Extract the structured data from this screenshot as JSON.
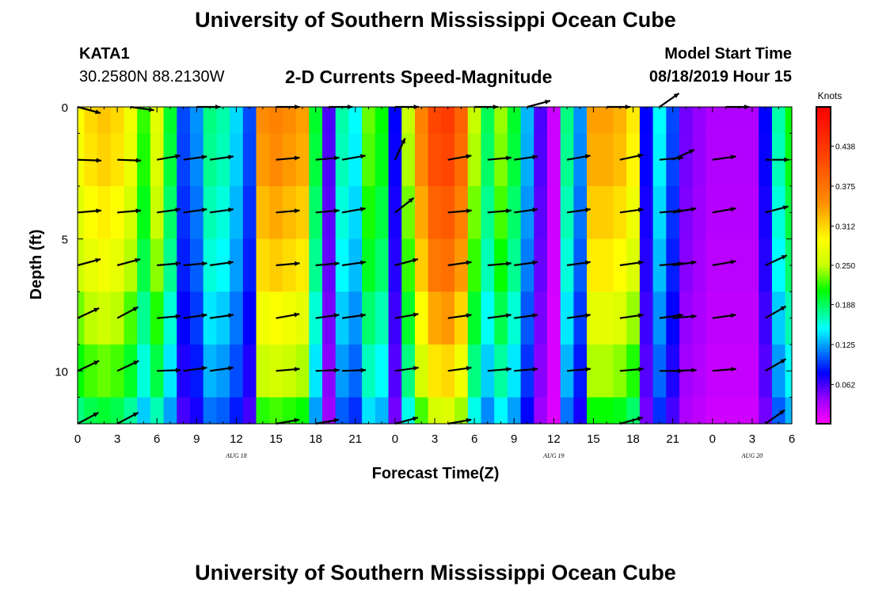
{
  "header": {
    "title": "University of Southern Mississippi Ocean Cube",
    "station_id": "KATA1",
    "coords": "30.2580N 88.2130W",
    "subtitle": "2-D Currents Speed-Magnitude",
    "model_start_label": "Model Start Time",
    "model_start_value": "08/18/2019 Hour 15"
  },
  "footer": {
    "title": "University of Southern Mississippi Ocean Cube"
  },
  "chart_data": {
    "type": "heatmap",
    "title": "2-D Currents Speed-Magnitude",
    "xlabel": "Forecast Time(Z)",
    "ylabel": "Depth (ft)",
    "x_ticks": [
      "0",
      "3",
      "6",
      "9",
      "12",
      "15",
      "18",
      "21",
      "0",
      "3",
      "6",
      "9",
      "12",
      "15",
      "18",
      "21",
      "0",
      "3",
      "6"
    ],
    "x_tick_hours": [
      0,
      3,
      6,
      9,
      12,
      15,
      18,
      21,
      24,
      27,
      30,
      33,
      36,
      39,
      42,
      45,
      48,
      51,
      54
    ],
    "date_labels": [
      {
        "text": "AUG 18",
        "hour": 12
      },
      {
        "text": "AUG 19",
        "hour": 36
      },
      {
        "text": "AUG 20",
        "hour": 51
      }
    ],
    "y_ticks": [
      "0",
      "5",
      "10"
    ],
    "y_tick_values": [
      0,
      5,
      10
    ],
    "xlim": [
      0,
      54
    ],
    "ylim": [
      0,
      12
    ],
    "depth_levels": [
      0,
      2,
      4,
      6,
      8,
      10,
      12
    ],
    "hours": [
      0,
      1,
      2,
      3,
      4,
      5,
      6,
      7,
      8,
      9,
      10,
      11,
      12,
      13,
      14,
      15,
      16,
      17,
      18,
      19,
      20,
      21,
      22,
      23,
      24,
      25,
      26,
      27,
      28,
      29,
      30,
      31,
      32,
      33,
      34,
      35,
      36,
      37,
      38,
      39,
      40,
      41,
      42,
      43,
      44,
      45,
      46,
      47,
      48,
      49,
      50,
      51,
      52,
      53,
      54
    ],
    "surface_speed": [
      0.29,
      0.31,
      0.32,
      0.31,
      0.28,
      0.22,
      0.27,
      0.2,
      0.1,
      0.12,
      0.18,
      0.17,
      0.14,
      0.1,
      0.35,
      0.36,
      0.35,
      0.34,
      0.2,
      0.06,
      0.17,
      0.15,
      0.23,
      0.21,
      0.08,
      0.25,
      0.36,
      0.42,
      0.43,
      0.39,
      0.25,
      0.19,
      0.24,
      0.2,
      0.13,
      0.06,
      0.02,
      0.18,
      0.12,
      0.34,
      0.34,
      0.33,
      0.3,
      0.08,
      0.15,
      0.1,
      0.05,
      0.04,
      0.03,
      0.03,
      0.03,
      0.03,
      0.08,
      0.17,
      0.21
    ],
    "depth_factor": [
      1.0,
      0.98,
      0.93,
      0.88,
      0.8,
      0.72,
      0.62
    ],
    "colorbar": {
      "label": "Knots",
      "ticks": [
        "0.438",
        "0.375",
        "0.312",
        "0.250",
        "0.188",
        "0.125",
        "0.062"
      ],
      "tick_values": [
        0.438,
        0.375,
        0.312,
        0.25,
        0.188,
        0.125,
        0.062
      ],
      "min": 0,
      "max": 0.5
    },
    "arrows": [
      {
        "hour": 0,
        "depth": 0,
        "dir": -15
      },
      {
        "hour": 4,
        "depth": 0,
        "dir": -8
      },
      {
        "hour": 9,
        "depth": 0,
        "dir": 0
      },
      {
        "hour": 15,
        "depth": 0,
        "dir": 0
      },
      {
        "hour": 19,
        "depth": 0,
        "dir": 0
      },
      {
        "hour": 24,
        "depth": 0,
        "dir": 0
      },
      {
        "hour": 30,
        "depth": 0,
        "dir": 0
      },
      {
        "hour": 34,
        "depth": 0,
        "dir": 15
      },
      {
        "hour": 40,
        "depth": 0,
        "dir": 0
      },
      {
        "hour": 44,
        "depth": 0,
        "dir": 35
      },
      {
        "hour": 49,
        "depth": 0,
        "dir": 0
      },
      {
        "hour": 0,
        "depth": 2,
        "dir": -2
      },
      {
        "hour": 3,
        "depth": 2,
        "dir": -2
      },
      {
        "hour": 6,
        "depth": 2,
        "dir": 10
      },
      {
        "hour": 8,
        "depth": 2,
        "dir": 8
      },
      {
        "hour": 10,
        "depth": 2,
        "dir": 8
      },
      {
        "hour": 15,
        "depth": 2,
        "dir": 5
      },
      {
        "hour": 18,
        "depth": 2,
        "dir": 5
      },
      {
        "hour": 20,
        "depth": 2,
        "dir": 10
      },
      {
        "hour": 24,
        "depth": 2,
        "dir": 65
      },
      {
        "hour": 28,
        "depth": 2,
        "dir": 10
      },
      {
        "hour": 31,
        "depth": 2,
        "dir": 5
      },
      {
        "hour": 33,
        "depth": 2,
        "dir": 8
      },
      {
        "hour": 37,
        "depth": 2,
        "dir": 10
      },
      {
        "hour": 41,
        "depth": 2,
        "dir": 12
      },
      {
        "hour": 44,
        "depth": 2,
        "dir": 5
      },
      {
        "hour": 45,
        "depth": 2,
        "dir": 25
      },
      {
        "hour": 48,
        "depth": 2,
        "dir": 8
      },
      {
        "hour": 52,
        "depth": 2,
        "dir": 0
      },
      {
        "hour": 0,
        "depth": 4,
        "dir": 5
      },
      {
        "hour": 3,
        "depth": 4,
        "dir": 5
      },
      {
        "hour": 6,
        "depth": 4,
        "dir": 8
      },
      {
        "hour": 8,
        "depth": 4,
        "dir": 8
      },
      {
        "hour": 10,
        "depth": 4,
        "dir": 8
      },
      {
        "hour": 15,
        "depth": 4,
        "dir": 5
      },
      {
        "hour": 18,
        "depth": 4,
        "dir": 5
      },
      {
        "hour": 20,
        "depth": 4,
        "dir": 10
      },
      {
        "hour": 24,
        "depth": 4,
        "dir": 38
      },
      {
        "hour": 28,
        "depth": 4,
        "dir": 5
      },
      {
        "hour": 31,
        "depth": 4,
        "dir": 5
      },
      {
        "hour": 33,
        "depth": 4,
        "dir": 8
      },
      {
        "hour": 37,
        "depth": 4,
        "dir": 8
      },
      {
        "hour": 41,
        "depth": 4,
        "dir": 8
      },
      {
        "hour": 44,
        "depth": 4,
        "dir": 5
      },
      {
        "hour": 45,
        "depth": 4,
        "dir": 10
      },
      {
        "hour": 48,
        "depth": 4,
        "dir": 10
      },
      {
        "hour": 52,
        "depth": 4,
        "dir": 15
      },
      {
        "hour": 0,
        "depth": 6,
        "dir": 15
      },
      {
        "hour": 3,
        "depth": 6,
        "dir": 15
      },
      {
        "hour": 6,
        "depth": 6,
        "dir": 5
      },
      {
        "hour": 8,
        "depth": 6,
        "dir": 5
      },
      {
        "hour": 10,
        "depth": 6,
        "dir": 8
      },
      {
        "hour": 15,
        "depth": 6,
        "dir": 5
      },
      {
        "hour": 18,
        "depth": 6,
        "dir": 5
      },
      {
        "hour": 20,
        "depth": 6,
        "dir": 8
      },
      {
        "hour": 24,
        "depth": 6,
        "dir": 15
      },
      {
        "hour": 28,
        "depth": 6,
        "dir": 8
      },
      {
        "hour": 31,
        "depth": 6,
        "dir": 5
      },
      {
        "hour": 33,
        "depth": 6,
        "dir": 8
      },
      {
        "hour": 37,
        "depth": 6,
        "dir": 8
      },
      {
        "hour": 41,
        "depth": 6,
        "dir": 8
      },
      {
        "hour": 44,
        "depth": 6,
        "dir": 5
      },
      {
        "hour": 45,
        "depth": 6,
        "dir": 8
      },
      {
        "hour": 48,
        "depth": 6,
        "dir": 10
      },
      {
        "hour": 52,
        "depth": 6,
        "dir": 25
      },
      {
        "hour": 0,
        "depth": 8,
        "dir": 25
      },
      {
        "hour": 3,
        "depth": 8,
        "dir": 28
      },
      {
        "hour": 6,
        "depth": 8,
        "dir": 5
      },
      {
        "hour": 8,
        "depth": 8,
        "dir": 8
      },
      {
        "hour": 10,
        "depth": 8,
        "dir": 8
      },
      {
        "hour": 15,
        "depth": 8,
        "dir": 10
      },
      {
        "hour": 18,
        "depth": 8,
        "dir": 8
      },
      {
        "hour": 20,
        "depth": 8,
        "dir": 8
      },
      {
        "hour": 24,
        "depth": 8,
        "dir": 10
      },
      {
        "hour": 28,
        "depth": 8,
        "dir": 8
      },
      {
        "hour": 31,
        "depth": 8,
        "dir": 8
      },
      {
        "hour": 33,
        "depth": 8,
        "dir": 8
      },
      {
        "hour": 37,
        "depth": 8,
        "dir": 8
      },
      {
        "hour": 41,
        "depth": 8,
        "dir": 8
      },
      {
        "hour": 44,
        "depth": 8,
        "dir": 8
      },
      {
        "hour": 45,
        "depth": 8,
        "dir": 5
      },
      {
        "hour": 48,
        "depth": 8,
        "dir": 8
      },
      {
        "hour": 52,
        "depth": 8,
        "dir": 30
      },
      {
        "hour": 0,
        "depth": 10,
        "dir": 25
      },
      {
        "hour": 3,
        "depth": 10,
        "dir": 25
      },
      {
        "hour": 6,
        "depth": 10,
        "dir": 2
      },
      {
        "hour": 8,
        "depth": 10,
        "dir": 8
      },
      {
        "hour": 10,
        "depth": 10,
        "dir": 8
      },
      {
        "hour": 15,
        "depth": 10,
        "dir": 5
      },
      {
        "hour": 18,
        "depth": 10,
        "dir": 2
      },
      {
        "hour": 20,
        "depth": 10,
        "dir": 2
      },
      {
        "hour": 24,
        "depth": 10,
        "dir": 8
      },
      {
        "hour": 28,
        "depth": 10,
        "dir": 8
      },
      {
        "hour": 31,
        "depth": 10,
        "dir": 5
      },
      {
        "hour": 33,
        "depth": 10,
        "dir": 5
      },
      {
        "hour": 37,
        "depth": 10,
        "dir": 5
      },
      {
        "hour": 41,
        "depth": 10,
        "dir": 5
      },
      {
        "hour": 44,
        "depth": 10,
        "dir": 0
      },
      {
        "hour": 45,
        "depth": 10,
        "dir": 2
      },
      {
        "hour": 48,
        "depth": 10,
        "dir": 5
      },
      {
        "hour": 52,
        "depth": 10,
        "dir": 30
      },
      {
        "hour": 0,
        "depth": 12,
        "dir": 28
      },
      {
        "hour": 3,
        "depth": 12,
        "dir": 28
      },
      {
        "hour": 15,
        "depth": 12,
        "dir": 10
      },
      {
        "hour": 18,
        "depth": 12,
        "dir": 10
      },
      {
        "hour": 24,
        "depth": 12,
        "dir": 15
      },
      {
        "hour": 28,
        "depth": 12,
        "dir": 10
      },
      {
        "hour": 41,
        "depth": 12,
        "dir": 15
      },
      {
        "hour": 52,
        "depth": 12,
        "dir": 35
      }
    ]
  }
}
